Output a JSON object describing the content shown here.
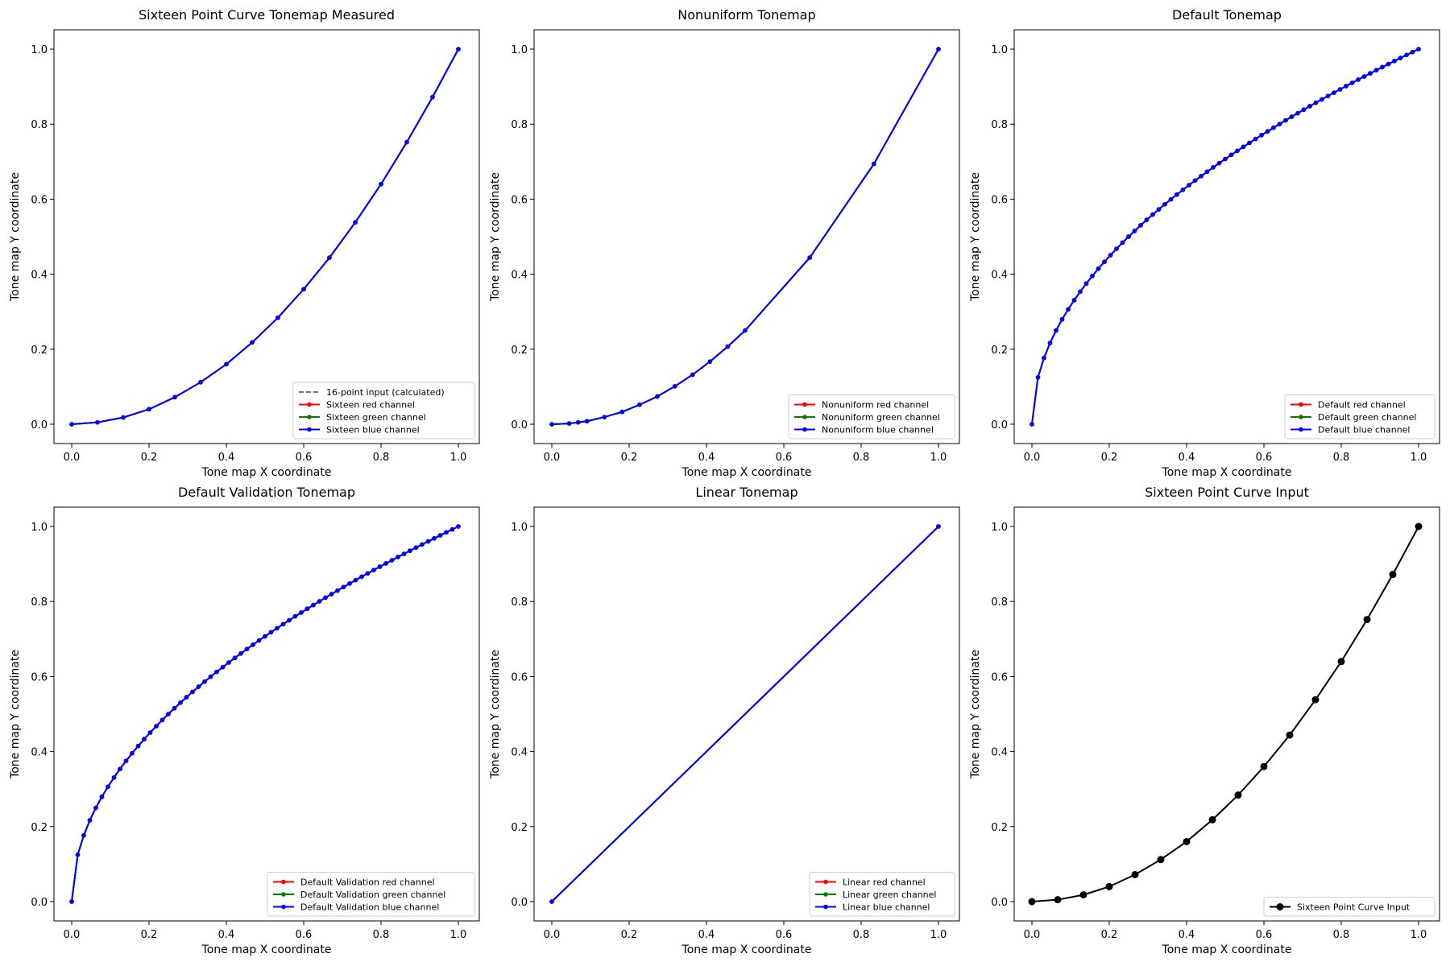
{
  "figure": {
    "background": "#ffffff"
  },
  "colors": {
    "red": "#ff0000",
    "green": "#008000",
    "blue": "#0000ff",
    "black": "#000000",
    "dashed": "#404040"
  },
  "chart_data": [
    {
      "id": "sixteen-measured",
      "type": "line",
      "title": "Sixteen Point Curve Tonemap Measured",
      "xlabel": "Tone map X coordinate",
      "ylabel": "Tone map Y coordinate",
      "xlim": [
        0.0,
        1.0
      ],
      "ylim": [
        0.0,
        1.0
      ],
      "xticks": [
        "0.0",
        "0.2",
        "0.4",
        "0.6",
        "0.8",
        "1.0"
      ],
      "yticks": [
        "0.0",
        "0.2",
        "0.4",
        "0.6",
        "0.8",
        "1.0"
      ],
      "grid": false,
      "legend_position": "lower-right",
      "x": [
        0.0,
        0.0667,
        0.1333,
        0.2,
        0.2667,
        0.3333,
        0.4,
        0.4667,
        0.5333,
        0.6,
        0.6667,
        0.7333,
        0.8,
        0.8667,
        0.9333,
        1.0
      ],
      "series": [
        {
          "name": "16-point input (calculated)",
          "color": "#404040",
          "style": "dashed",
          "marker": "none",
          "values": [
            0.0,
            0.005,
            0.018,
            0.04,
            0.072,
            0.112,
            0.16,
            0.218,
            0.284,
            0.36,
            0.444,
            0.538,
            0.64,
            0.752,
            0.872,
            1.0
          ]
        },
        {
          "name": "Sixteen red channel",
          "color": "#ff0000",
          "style": "solid",
          "marker": "dot",
          "values": [
            0.0,
            0.005,
            0.018,
            0.04,
            0.072,
            0.112,
            0.16,
            0.218,
            0.284,
            0.36,
            0.444,
            0.538,
            0.64,
            0.752,
            0.872,
            1.0
          ]
        },
        {
          "name": "Sixteen green channel",
          "color": "#008000",
          "style": "solid",
          "marker": "dot",
          "values": [
            0.0,
            0.005,
            0.018,
            0.04,
            0.072,
            0.112,
            0.16,
            0.218,
            0.284,
            0.36,
            0.444,
            0.538,
            0.64,
            0.752,
            0.872,
            1.0
          ]
        },
        {
          "name": "Sixteen blue channel",
          "color": "#0000ff",
          "style": "solid",
          "marker": "dot",
          "values": [
            0.0,
            0.005,
            0.018,
            0.04,
            0.072,
            0.112,
            0.16,
            0.218,
            0.284,
            0.36,
            0.444,
            0.538,
            0.64,
            0.752,
            0.872,
            1.0
          ]
        }
      ]
    },
    {
      "id": "nonuniform",
      "type": "line",
      "title": "Nonuniform Tonemap",
      "xlabel": "Tone map X coordinate",
      "ylabel": "Tone map Y coordinate",
      "xlim": [
        0.0,
        1.0
      ],
      "ylim": [
        0.0,
        1.0
      ],
      "xticks": [
        "0.0",
        "0.2",
        "0.4",
        "0.6",
        "0.8",
        "1.0"
      ],
      "yticks": [
        "0.0",
        "0.2",
        "0.4",
        "0.6",
        "0.8",
        "1.0"
      ],
      "grid": false,
      "legend_position": "lower-right",
      "x": [
        0.0,
        0.045,
        0.068,
        0.091,
        0.136,
        0.182,
        0.227,
        0.273,
        0.318,
        0.364,
        0.409,
        0.455,
        0.5,
        0.667,
        0.833,
        1.0
      ],
      "series": [
        {
          "name": "Nonuniform red channel",
          "color": "#ff0000",
          "style": "solid",
          "marker": "dot",
          "values": [
            0.0,
            0.002,
            0.005,
            0.008,
            0.019,
            0.033,
            0.052,
            0.074,
            0.101,
            0.132,
            0.167,
            0.207,
            0.25,
            0.444,
            0.694,
            1.0
          ]
        },
        {
          "name": "Nonuniform green channel",
          "color": "#008000",
          "style": "solid",
          "marker": "dot",
          "values": [
            0.0,
            0.002,
            0.005,
            0.008,
            0.019,
            0.033,
            0.052,
            0.074,
            0.101,
            0.132,
            0.167,
            0.207,
            0.25,
            0.444,
            0.694,
            1.0
          ]
        },
        {
          "name": "Nonuniform blue channel",
          "color": "#0000ff",
          "style": "solid",
          "marker": "dot",
          "values": [
            0.0,
            0.002,
            0.005,
            0.008,
            0.019,
            0.033,
            0.052,
            0.074,
            0.101,
            0.132,
            0.167,
            0.207,
            0.25,
            0.444,
            0.694,
            1.0
          ]
        }
      ]
    },
    {
      "id": "default",
      "type": "line",
      "title": "Default Tonemap",
      "xlabel": "Tone map X coordinate",
      "ylabel": "Tone map Y coordinate",
      "xlim": [
        0.0,
        1.0
      ],
      "ylim": [
        0.0,
        1.0
      ],
      "xticks": [
        "0.0",
        "0.2",
        "0.4",
        "0.6",
        "0.8",
        "1.0"
      ],
      "yticks": [
        "0.0",
        "0.2",
        "0.4",
        "0.6",
        "0.8",
        "1.0"
      ],
      "grid": false,
      "legend_position": "lower-right",
      "x": [
        0.0,
        0.0156,
        0.0312,
        0.0469,
        0.0625,
        0.0781,
        0.0938,
        0.1094,
        0.125,
        0.1406,
        0.1562,
        0.1719,
        0.1875,
        0.2031,
        0.2188,
        0.2344,
        0.25,
        0.2656,
        0.2812,
        0.2969,
        0.3125,
        0.3281,
        0.3438,
        0.3594,
        0.375,
        0.3906,
        0.4062,
        0.4219,
        0.4375,
        0.4531,
        0.4688,
        0.4844,
        0.5,
        0.5156,
        0.5312,
        0.5469,
        0.5625,
        0.5781,
        0.5938,
        0.6094,
        0.625,
        0.6406,
        0.6562,
        0.6719,
        0.6875,
        0.7031,
        0.7188,
        0.7344,
        0.75,
        0.7656,
        0.7812,
        0.7969,
        0.8125,
        0.8281,
        0.8438,
        0.8594,
        0.875,
        0.8906,
        0.9062,
        0.9219,
        0.9375,
        0.9531,
        0.9688,
        0.9844,
        1.0
      ],
      "series": [
        {
          "name": "Default red channel",
          "color": "#ff0000",
          "style": "solid",
          "marker": "dot",
          "values_rule": "sqrt"
        },
        {
          "name": "Default green channel",
          "color": "#008000",
          "style": "solid",
          "marker": "dot",
          "values_rule": "sqrt"
        },
        {
          "name": "Default blue channel",
          "color": "#0000ff",
          "style": "solid",
          "marker": "dot",
          "values_rule": "sqrt"
        }
      ]
    },
    {
      "id": "default-validation",
      "type": "line",
      "title": "Default Validation Tonemap",
      "xlabel": "Tone map X coordinate",
      "ylabel": "Tone map Y coordinate",
      "xlim": [
        0.0,
        1.0
      ],
      "ylim": [
        0.0,
        1.0
      ],
      "xticks": [
        "0.0",
        "0.2",
        "0.4",
        "0.6",
        "0.8",
        "1.0"
      ],
      "yticks": [
        "0.0",
        "0.2",
        "0.4",
        "0.6",
        "0.8",
        "1.0"
      ],
      "grid": false,
      "legend_position": "lower-right",
      "x": [
        0.0,
        0.0156,
        0.0312,
        0.0469,
        0.0625,
        0.0781,
        0.0938,
        0.1094,
        0.125,
        0.1406,
        0.1562,
        0.1719,
        0.1875,
        0.2031,
        0.2188,
        0.2344,
        0.25,
        0.2656,
        0.2812,
        0.2969,
        0.3125,
        0.3281,
        0.3438,
        0.3594,
        0.375,
        0.3906,
        0.4062,
        0.4219,
        0.4375,
        0.4531,
        0.4688,
        0.4844,
        0.5,
        0.5156,
        0.5312,
        0.5469,
        0.5625,
        0.5781,
        0.5938,
        0.6094,
        0.625,
        0.6406,
        0.6562,
        0.6719,
        0.6875,
        0.7031,
        0.7188,
        0.7344,
        0.75,
        0.7656,
        0.7812,
        0.7969,
        0.8125,
        0.8281,
        0.8438,
        0.8594,
        0.875,
        0.8906,
        0.9062,
        0.9219,
        0.9375,
        0.9531,
        0.9688,
        0.9844,
        1.0
      ],
      "series": [
        {
          "name": "Default Validation red channel",
          "color": "#ff0000",
          "style": "solid",
          "marker": "dot",
          "values_rule": "sqrt"
        },
        {
          "name": "Default Validation green channel",
          "color": "#008000",
          "style": "solid",
          "marker": "dot",
          "values_rule": "sqrt"
        },
        {
          "name": "Default Validation blue channel",
          "color": "#0000ff",
          "style": "solid",
          "marker": "dot",
          "values_rule": "sqrt"
        }
      ]
    },
    {
      "id": "linear",
      "type": "line",
      "title": "Linear Tonemap",
      "xlabel": "Tone map X coordinate",
      "ylabel": "Tone map Y coordinate",
      "xlim": [
        0.0,
        1.0
      ],
      "ylim": [
        0.0,
        1.0
      ],
      "xticks": [
        "0.0",
        "0.2",
        "0.4",
        "0.6",
        "0.8",
        "1.0"
      ],
      "yticks": [
        "0.0",
        "0.2",
        "0.4",
        "0.6",
        "0.8",
        "1.0"
      ],
      "grid": false,
      "legend_position": "lower-right",
      "x": [
        0.0,
        1.0
      ],
      "series": [
        {
          "name": "Linear red channel",
          "color": "#ff0000",
          "style": "solid",
          "marker": "dot",
          "values": [
            0.0,
            1.0
          ]
        },
        {
          "name": "Linear green channel",
          "color": "#008000",
          "style": "solid",
          "marker": "dot",
          "values": [
            0.0,
            1.0
          ]
        },
        {
          "name": "Linear blue channel",
          "color": "#0000ff",
          "style": "solid",
          "marker": "dot",
          "values": [
            0.0,
            1.0
          ]
        }
      ]
    },
    {
      "id": "sixteen-input",
      "type": "line",
      "title": "Sixteen Point Curve Input",
      "xlabel": "Tone map X coordinate",
      "ylabel": "Tone map Y coordinate",
      "xlim": [
        0.0,
        1.0
      ],
      "ylim": [
        0.0,
        1.0
      ],
      "xticks": [
        "0.0",
        "0.2",
        "0.4",
        "0.6",
        "0.8",
        "1.0"
      ],
      "yticks": [
        "0.0",
        "0.2",
        "0.4",
        "0.6",
        "0.8",
        "1.0"
      ],
      "grid": false,
      "legend_position": "lower-right",
      "x": [
        0.0,
        0.0667,
        0.1333,
        0.2,
        0.2667,
        0.3333,
        0.4,
        0.4667,
        0.5333,
        0.6,
        0.6667,
        0.7333,
        0.8,
        0.8667,
        0.9333,
        1.0
      ],
      "series": [
        {
          "name": "Sixteen Point Curve Input",
          "color": "#000000",
          "style": "solid",
          "marker": "big-dot",
          "values": [
            0.0,
            0.005,
            0.018,
            0.04,
            0.072,
            0.112,
            0.16,
            0.218,
            0.284,
            0.36,
            0.444,
            0.538,
            0.64,
            0.752,
            0.872,
            1.0
          ]
        }
      ]
    }
  ]
}
